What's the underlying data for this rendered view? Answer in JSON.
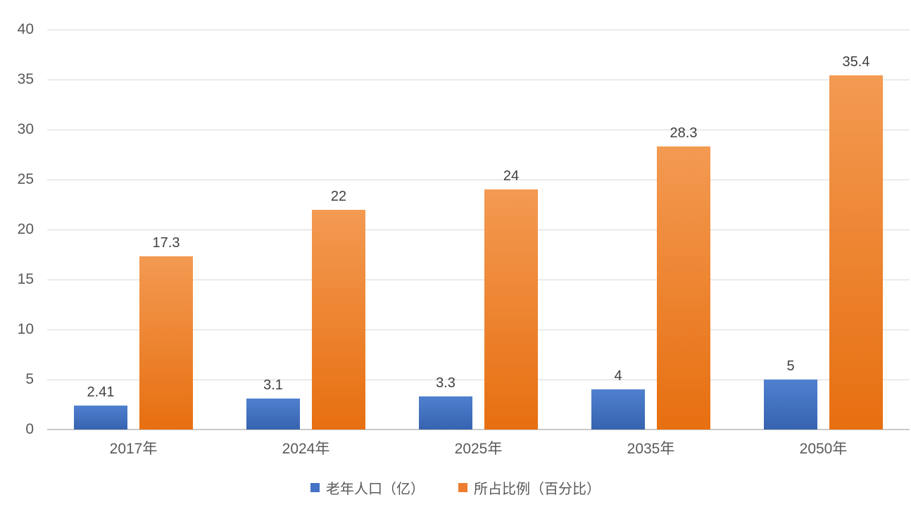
{
  "chart_data": {
    "type": "bar",
    "title": "",
    "xlabel": "",
    "ylabel": "",
    "categories": [
      "2017年",
      "2024年",
      "2025年",
      "2035年",
      "2050年"
    ],
    "series": [
      {
        "name": "老年人口（亿）",
        "values": [
          2.41,
          3.1,
          3.3,
          4,
          5
        ],
        "labels": [
          "2.41",
          "3.1",
          "3.3",
          "4",
          "5"
        ],
        "color": "#4472C4",
        "gradient_top": "#4f80ce",
        "gradient_bottom": "#3763b0"
      },
      {
        "name": "所占比例（百分比）",
        "values": [
          17.3,
          22,
          24,
          28.3,
          35.4
        ],
        "labels": [
          "17.3",
          "22",
          "24",
          "28.3",
          "35.4"
        ],
        "color": "#ED7D31",
        "gradient_top": "#f39a52",
        "gradient_bottom": "#e76f10"
      }
    ],
    "ylim": [
      0,
      40
    ],
    "yticks": [
      0,
      5,
      10,
      15,
      20,
      25,
      30,
      35,
      40
    ],
    "grid": true,
    "legend_position": "bottom",
    "colors": {
      "gridline": "#d9d9d9",
      "axis_line": "#c9c9c9",
      "tick_label": "#595959",
      "value_label": "#404040",
      "background": "#ffffff"
    }
  }
}
